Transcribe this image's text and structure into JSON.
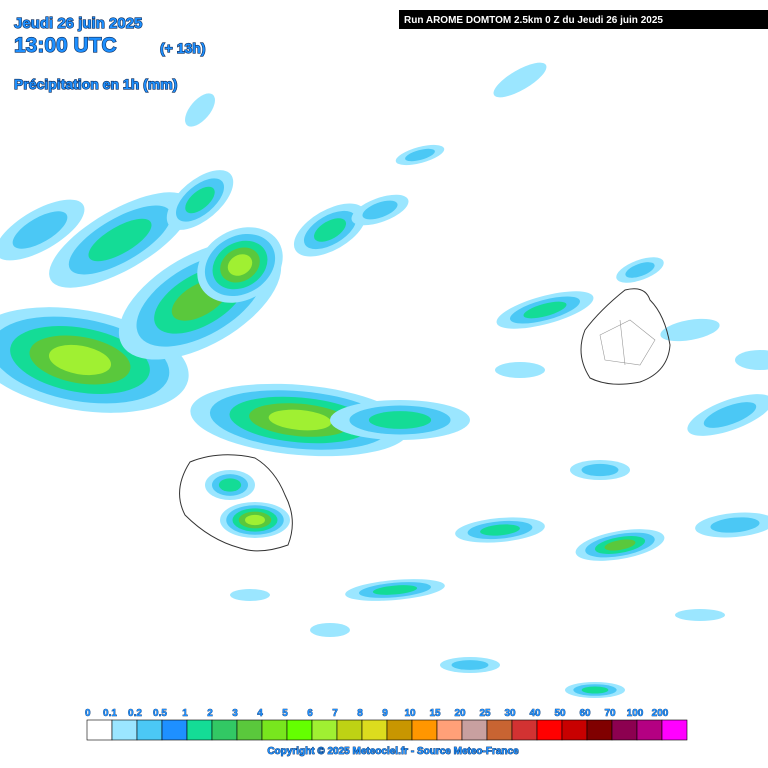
{
  "header": {
    "date": "Jeudi 26 juin 2025",
    "time": "13:00 UTC",
    "lead": "(+ 13h)",
    "field": "Précipitation en 1h (mm)",
    "run": "Run AROME DOMTOM 2.5km 0 Z du Jeudi 26 juin 2025"
  },
  "legend": {
    "labels": [
      "0",
      "0.1",
      "0.2",
      "0.5",
      "1",
      "2",
      "3",
      "4",
      "5",
      "6",
      "7",
      "8",
      "9",
      "10",
      "15",
      "20",
      "25",
      "30",
      "40",
      "50",
      "60",
      "70",
      "100",
      "200"
    ],
    "colors": [
      "#ffffff",
      "#9be6ff",
      "#4bc8f5",
      "#1e90ff",
      "#14dc96",
      "#32c864",
      "#5ac83c",
      "#78e61e",
      "#64ff00",
      "#a0f032",
      "#bed214",
      "#dcdc1e",
      "#c89600",
      "#ff9600",
      "#ffa078",
      "#c8a0a0",
      "#c86432",
      "#d23232",
      "#ff0000",
      "#c80000",
      "#800000",
      "#8c0050",
      "#b40082",
      "#ff00ff"
    ]
  },
  "footer": {
    "copyright": "Copyright © 2025 Meteociel.fr - Source Meteo-France"
  }
}
